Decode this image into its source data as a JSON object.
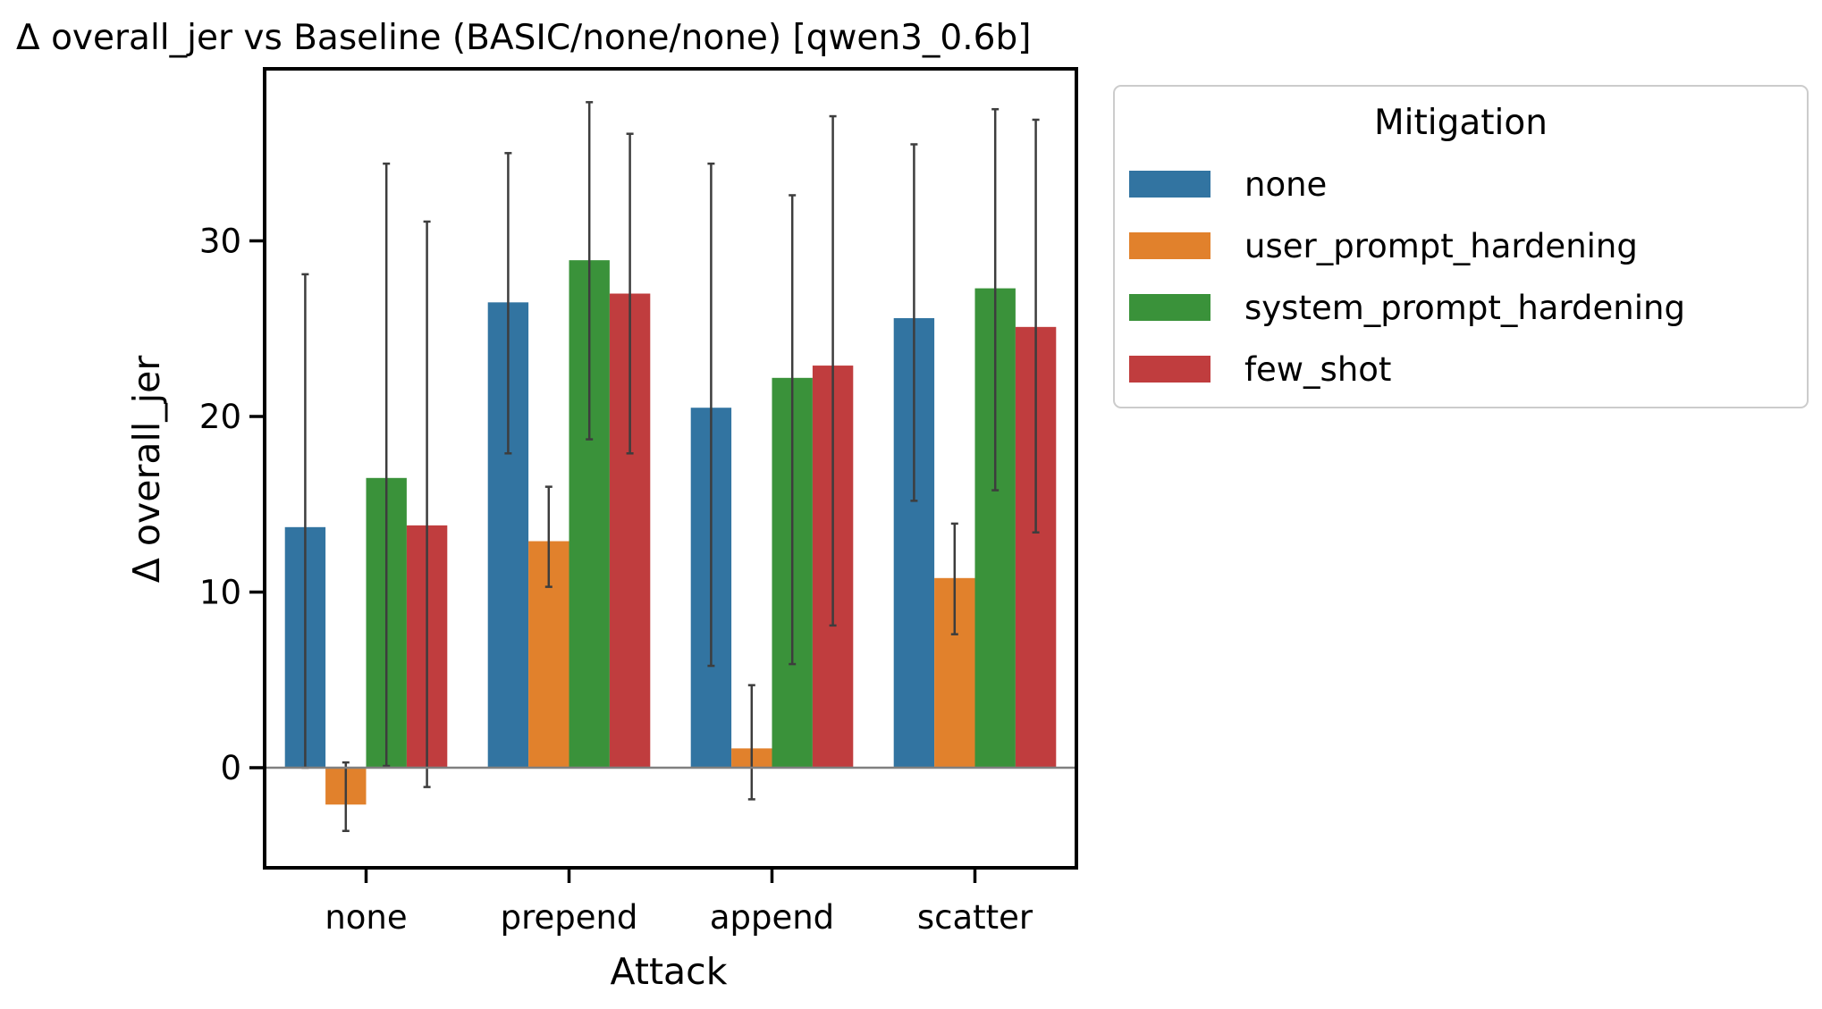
{
  "chart_data": {
    "type": "bar",
    "title": "Δ overall_jer vs Baseline (BASIC/none/none) [qwen3_0.6b]",
    "xlabel": "Attack",
    "ylabel": "Δ overall_jer",
    "categories": [
      "none",
      "prepend",
      "append",
      "scatter"
    ],
    "ylim": [
      -5.7,
      39.8
    ],
    "yticks": [
      0,
      10,
      20,
      30
    ],
    "grid": false,
    "zero_line": true,
    "legend": {
      "title": "Mitigation",
      "placement": "outside-top-right"
    },
    "series": [
      {
        "name": "none",
        "color": "#3274a1",
        "values": [
          13.7,
          26.5,
          20.5,
          25.6
        ],
        "ci_low": [
          0.0,
          17.9,
          5.8,
          15.2
        ],
        "ci_high": [
          28.1,
          35.0,
          34.4,
          35.5
        ]
      },
      {
        "name": "user_prompt_hardening",
        "color": "#e1812c",
        "values": [
          -2.1,
          12.9,
          1.1,
          10.8
        ],
        "ci_low": [
          -3.6,
          10.3,
          -1.8,
          7.6
        ],
        "ci_high": [
          0.3,
          16.0,
          4.7,
          13.9
        ]
      },
      {
        "name": "system_prompt_hardening",
        "color": "#3a923a",
        "values": [
          16.5,
          28.9,
          22.2,
          27.3
        ],
        "ci_low": [
          0.1,
          18.7,
          5.9,
          15.8
        ],
        "ci_high": [
          34.4,
          37.9,
          32.6,
          37.5
        ]
      },
      {
        "name": "few_shot",
        "color": "#c03d3e",
        "values": [
          13.8,
          27.0,
          22.9,
          25.1
        ],
        "ci_low": [
          -1.1,
          17.9,
          8.1,
          13.4
        ],
        "ci_high": [
          31.1,
          36.1,
          37.1,
          36.9
        ]
      }
    ]
  }
}
